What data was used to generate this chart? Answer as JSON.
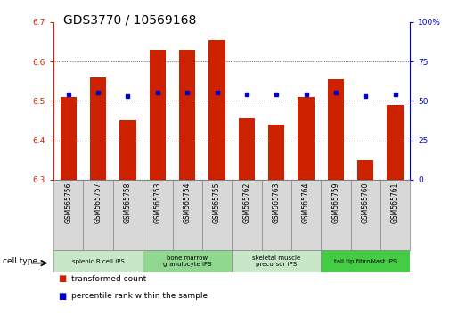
{
  "title": "GDS3770 / 10569168",
  "samples": [
    "GSM565756",
    "GSM565757",
    "GSM565758",
    "GSM565753",
    "GSM565754",
    "GSM565755",
    "GSM565762",
    "GSM565763",
    "GSM565764",
    "GSM565759",
    "GSM565760",
    "GSM565761"
  ],
  "bar_values": [
    6.51,
    6.56,
    6.45,
    6.63,
    6.63,
    6.655,
    6.455,
    6.44,
    6.51,
    6.555,
    6.35,
    6.49
  ],
  "percentile_values": [
    54,
    55,
    53,
    55,
    55,
    55,
    54,
    54,
    54,
    55,
    53,
    54
  ],
  "bar_bottom": 6.3,
  "ylim": [
    6.3,
    6.7
  ],
  "y2lim": [
    0,
    100
  ],
  "yticks": [
    6.3,
    6.4,
    6.5,
    6.6,
    6.7
  ],
  "y2ticks": [
    0,
    25,
    50,
    75,
    100
  ],
  "y2ticklabels": [
    "0",
    "25",
    "50",
    "75",
    "100%"
  ],
  "bar_color": "#cc2200",
  "dot_color": "#0000cc",
  "cell_types": [
    {
      "label": "splenic B cell iPS",
      "start": 0,
      "end": 3,
      "color": "#c8e6c8"
    },
    {
      "label": "bone marrow\ngranulocyte iPS",
      "start": 3,
      "end": 6,
      "color": "#90d890"
    },
    {
      "label": "skeletal muscle\nprecursor iPS",
      "start": 6,
      "end": 9,
      "color": "#c8e6c8"
    },
    {
      "label": "tail tip fibroblast iPS",
      "start": 9,
      "end": 12,
      "color": "#44cc44"
    }
  ],
  "cell_type_label": "cell type",
  "legend_red_label": "transformed count",
  "legend_blue_label": "percentile rank within the sample",
  "title_fontsize": 10,
  "tick_fontsize": 6.5,
  "bar_width": 0.55,
  "tick_color_left": "#cc2200",
  "tick_color_right": "#0000cc",
  "sample_box_color": "#d8d8d8",
  "sample_box_edge": "#888888"
}
